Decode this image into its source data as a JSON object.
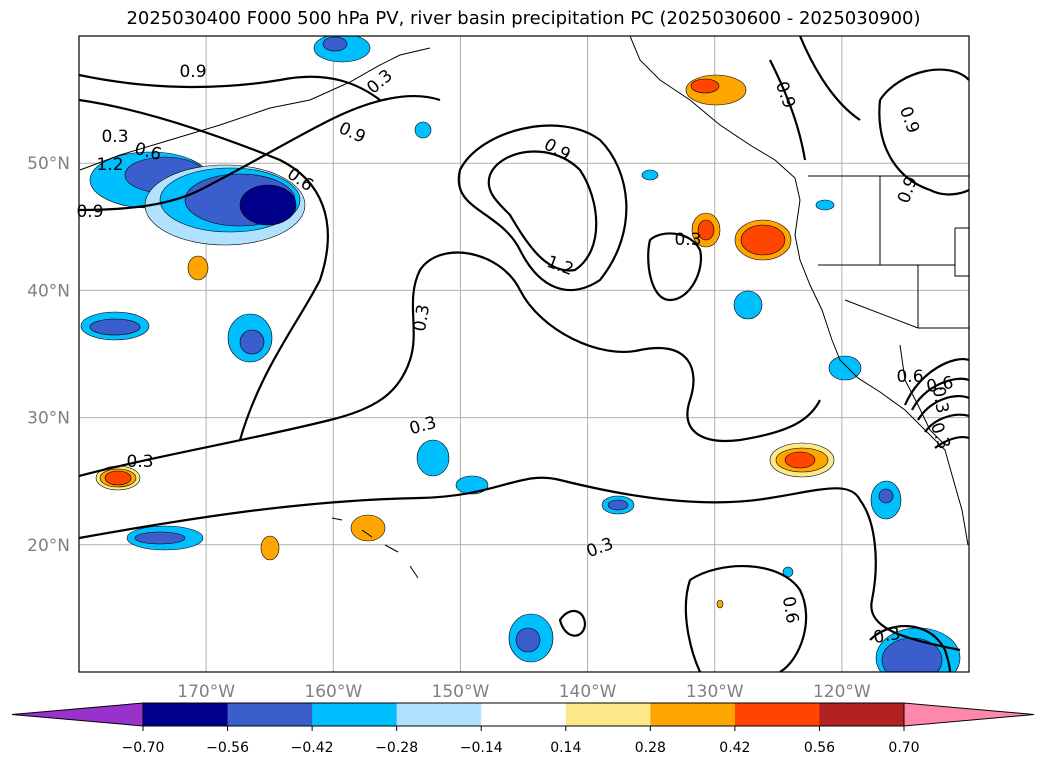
{
  "chart_data": {
    "type": "contour",
    "title": "2025030400 F000 500 hPa PV, river basin precipitation PC (2025030600 - 2025030900)",
    "x_ticks": [
      "170°W",
      "160°W",
      "150°W",
      "140°W",
      "130°W",
      "120°W"
    ],
    "y_ticks": [
      "50°N",
      "40°N",
      "30°N",
      "20°N"
    ],
    "lon_range": [
      -180,
      -110
    ],
    "lat_range": [
      10,
      60
    ],
    "grid": true,
    "contour_levels": [
      0.3,
      0.6,
      0.9,
      1.2
    ],
    "contour_labels": [
      "0.9",
      "0.3",
      "0.3",
      "0.6",
      "1.2",
      "0.9",
      "0.9",
      "0.6",
      "0.9",
      "1.2",
      "0.3",
      "0.9",
      "0.3",
      "0.9",
      "0.3",
      "0.3",
      "0.3",
      "0.6",
      "0.9",
      "0.3",
      "0.6",
      "0.3",
      "0.3",
      "0.6"
    ],
    "colorbar": {
      "ticks": [
        "−0.70",
        "−0.56",
        "−0.42",
        "−0.28",
        "−0.14",
        "0.14",
        "0.28",
        "0.42",
        "0.56",
        "0.70"
      ],
      "colors": [
        "#9932cc",
        "#00008b",
        "#3a5fcd",
        "#00bfff",
        "#b0e2ff",
        "#ffffff",
        "#fce98a",
        "#ffa500",
        "#ff4500",
        "#b22222",
        "#ff88aa"
      ],
      "extend": "both"
    }
  }
}
